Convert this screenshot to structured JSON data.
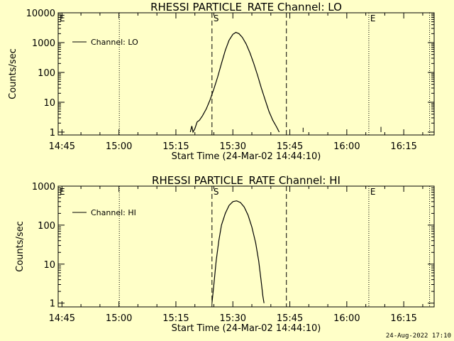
{
  "footer": {
    "timestamp": "24-Aug-2022 17:10"
  },
  "chart_data": [
    {
      "type": "line",
      "title": "RHESSI PARTICLE_RATE Channel: LO",
      "xlabel": "Start Time (24-Mar-02 14:44:10)",
      "ylabel": "Counts/sec",
      "y_scale": "log",
      "ylim": [
        0.8,
        10000
      ],
      "x_range_minutes": [
        -1,
        98
      ],
      "x_ticks": [
        {
          "label": "14:45",
          "min": 0
        },
        {
          "label": "15:00",
          "min": 15
        },
        {
          "label": "15:15",
          "min": 30
        },
        {
          "label": "15:30",
          "min": 45
        },
        {
          "label": "15:45",
          "min": 60
        },
        {
          "label": "16:00",
          "min": 75
        },
        {
          "label": "16:15",
          "min": 90
        }
      ],
      "y_ticks": [
        "1",
        "10",
        "100",
        "1000",
        "10000"
      ],
      "legend": {
        "label": "Channel: LO",
        "placement": "top-left"
      },
      "markers": [
        {
          "label": "E",
          "min": -1,
          "style": "dotted"
        },
        {
          "label": "",
          "min": 15.1,
          "style": "dotted"
        },
        {
          "label": "S",
          "min": 39.5,
          "style": "dashed"
        },
        {
          "label": "",
          "min": 59.1,
          "style": "dashed"
        },
        {
          "label": "E",
          "min": 80.8,
          "style": "dotted"
        },
        {
          "label": "",
          "min": 96.8,
          "style": "dotted"
        }
      ],
      "series": [
        {
          "name": "Channel: LO",
          "points": [
            [
              33.8,
              1
            ],
            [
              34.2,
              1.6
            ],
            [
              34.5,
              1
            ],
            [
              35.0,
              1.3
            ],
            [
              35.6,
              2.2
            ],
            [
              36.2,
              2.5
            ],
            [
              37.0,
              3.5
            ],
            [
              38.0,
              6
            ],
            [
              39.0,
              12
            ],
            [
              40.0,
              28
            ],
            [
              41.0,
              70
            ],
            [
              42.0,
              200
            ],
            [
              43.0,
              550
            ],
            [
              44.0,
              1200
            ],
            [
              45.0,
              1900
            ],
            [
              45.8,
              2200
            ],
            [
              46.6,
              2000
            ],
            [
              47.5,
              1500
            ],
            [
              48.5,
              900
            ],
            [
              49.5,
              450
            ],
            [
              50.5,
              200
            ],
            [
              51.5,
              80
            ],
            [
              52.5,
              30
            ],
            [
              53.5,
              12
            ],
            [
              54.5,
              5
            ],
            [
              55.5,
              2.5
            ],
            [
              56.5,
              1.5
            ],
            [
              57.2,
              1
            ]
          ]
        }
      ]
    },
    {
      "type": "line",
      "title": "RHESSI PARTICLE_RATE Channel: HI",
      "xlabel": "Start Time (24-Mar-02 14:44:10)",
      "ylabel": "Counts/sec",
      "y_scale": "log",
      "ylim": [
        0.8,
        1000
      ],
      "x_range_minutes": [
        -1,
        98
      ],
      "x_ticks": [
        {
          "label": "14:45",
          "min": 0
        },
        {
          "label": "15:00",
          "min": 15
        },
        {
          "label": "15:15",
          "min": 30
        },
        {
          "label": "15:30",
          "min": 45
        },
        {
          "label": "15:45",
          "min": 60
        },
        {
          "label": "16:00",
          "min": 75
        },
        {
          "label": "16:15",
          "min": 90
        }
      ],
      "y_ticks": [
        "1",
        "10",
        "100",
        "1000"
      ],
      "legend": {
        "label": "Channel: HI",
        "placement": "top-left"
      },
      "markers": [
        {
          "label": "E",
          "min": -1,
          "style": "dotted"
        },
        {
          "label": "",
          "min": 15.1,
          "style": "dotted"
        },
        {
          "label": "S",
          "min": 39.5,
          "style": "dashed"
        },
        {
          "label": "",
          "min": 59.1,
          "style": "dashed"
        },
        {
          "label": "E",
          "min": 80.8,
          "style": "dotted"
        },
        {
          "label": "",
          "min": 96.8,
          "style": "dotted"
        }
      ],
      "series": [
        {
          "name": "Channel: HI",
          "points": [
            [
              39.5,
              1
            ],
            [
              40.0,
              3
            ],
            [
              40.6,
              12
            ],
            [
              41.3,
              40
            ],
            [
              42.0,
              100
            ],
            [
              43.0,
              200
            ],
            [
              44.0,
              320
            ],
            [
              45.0,
              400
            ],
            [
              46.0,
              420
            ],
            [
              47.0,
              380
            ],
            [
              48.0,
              290
            ],
            [
              49.0,
              180
            ],
            [
              50.0,
              90
            ],
            [
              51.0,
              35
            ],
            [
              51.8,
              12
            ],
            [
              52.4,
              4
            ],
            [
              52.9,
              1.5
            ],
            [
              53.2,
              1
            ]
          ]
        }
      ]
    }
  ]
}
